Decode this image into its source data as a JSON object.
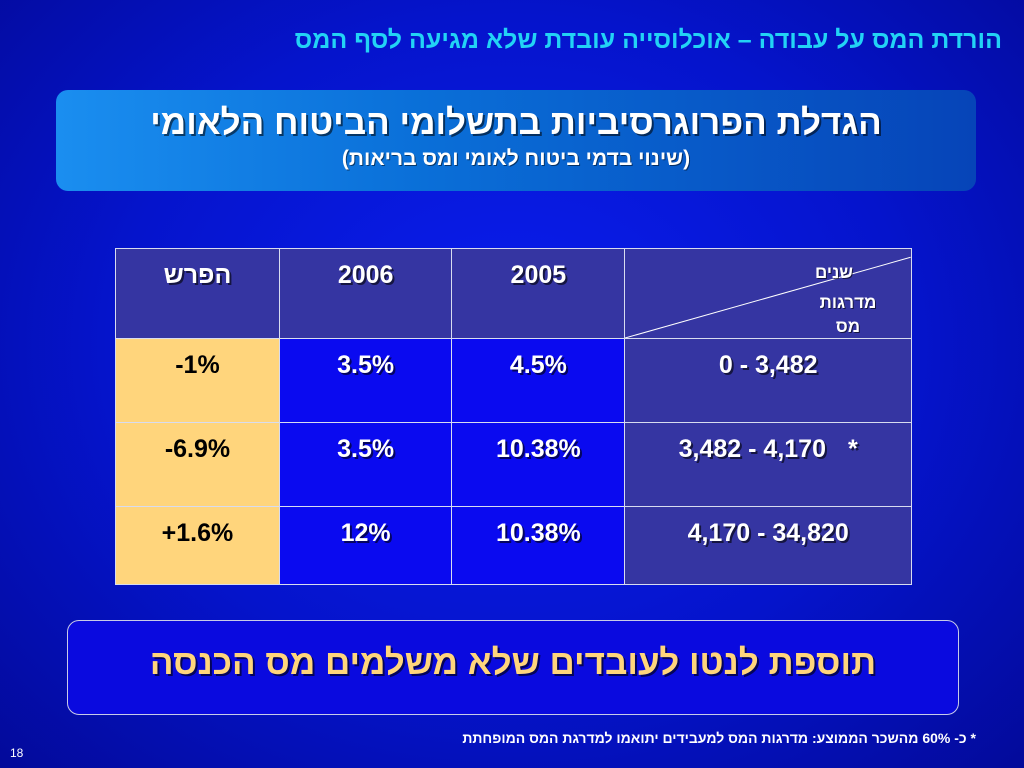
{
  "slide": {
    "top_title": "הורדת המס על עבודה – אוכלוסייה עובדת שלא מגיעה לסף המס",
    "banner_title": "הגדלת הפרוגרסיביות בתשלומי הביטוח הלאומי",
    "banner_subtitle": "(שינוי בדמי ביטוח לאומי ומס בריאות)",
    "table": {
      "header": {
        "corner_years": "שנים",
        "corner_brackets": "מדרגות מס",
        "col_2005": "2005",
        "col_2006": "2006",
        "col_diff": "הפרש"
      },
      "rows": [
        {
          "bracket": "0 - 3,482",
          "star": "",
          "v2005": "4.5%",
          "v2006": "3.5%",
          "diff": "-1%"
        },
        {
          "bracket": "3,482 - 4,170",
          "star": "*",
          "v2005": "10.38%",
          "v2006": "3.5%",
          "diff": "-6.9%"
        },
        {
          "bracket": "4,170 - 34,820",
          "star": "",
          "v2005": "10.38%",
          "v2006": "12%",
          "diff": "+1.6%"
        }
      ]
    },
    "bottom_message": "תוספת לנטו לעובדים שלא משלמים מס הכנסה",
    "footnote": "* כ- 60% מהשכר הממוצע: מדרגות המס למעבידים יתואמו למדרגת המס המופחתת",
    "slide_number": "18"
  },
  "colors": {
    "background": "#0514cc",
    "title_cyan": "#22d3f5",
    "diff_highlight": "#ffd57c",
    "header_cell": "#3535a2",
    "data_cell": "#0a0af0"
  }
}
